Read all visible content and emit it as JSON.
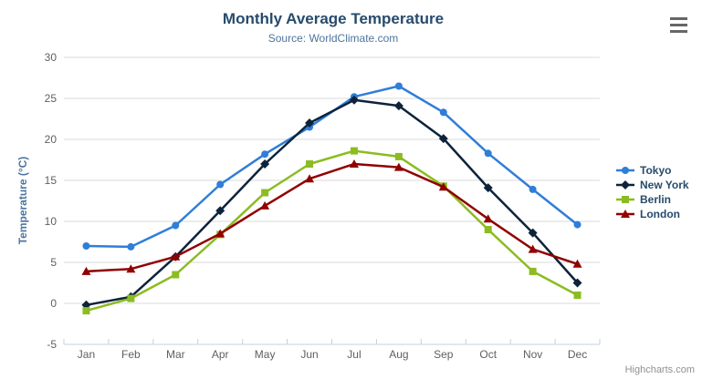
{
  "header": {
    "title": "Monthly Average Temperature",
    "subtitle": "Source: WorldClimate.com"
  },
  "chart_data": {
    "type": "line",
    "title": "Monthly Average Temperature",
    "subtitle": "Source: WorldClimate.com",
    "categories": [
      "Jan",
      "Feb",
      "Mar",
      "Apr",
      "May",
      "Jun",
      "Jul",
      "Aug",
      "Sep",
      "Oct",
      "Nov",
      "Dec"
    ],
    "series": [
      {
        "name": "Tokyo",
        "marker": "circle",
        "color": "#2f7ed8",
        "values": [
          7.0,
          6.9,
          9.5,
          14.5,
          18.2,
          21.5,
          25.2,
          26.5,
          23.3,
          18.3,
          13.9,
          9.6
        ]
      },
      {
        "name": "New York",
        "marker": "diamond",
        "color": "#0d233a",
        "values": [
          -0.2,
          0.8,
          5.7,
          11.3,
          17.0,
          22.0,
          24.8,
          24.1,
          20.1,
          14.1,
          8.6,
          2.5
        ]
      },
      {
        "name": "Berlin",
        "marker": "square",
        "color": "#8bbc21",
        "values": [
          -0.9,
          0.6,
          3.5,
          8.4,
          13.5,
          17.0,
          18.6,
          17.9,
          14.3,
          9.0,
          3.9,
          1.0
        ]
      },
      {
        "name": "London",
        "marker": "triangle",
        "color": "#910000",
        "values": [
          3.9,
          4.2,
          5.7,
          8.5,
          11.9,
          15.2,
          17.0,
          16.6,
          14.2,
          10.3,
          6.6,
          4.8
        ]
      }
    ],
    "xlabel": "",
    "ylabel": "Temperature (°C)",
    "ylim": [
      -5,
      30
    ],
    "ytick_step": 5,
    "yticks": [
      -5,
      0,
      5,
      10,
      15,
      20,
      25,
      30
    ],
    "grid": true,
    "legend_position": "right"
  },
  "credits": {
    "label": "Highcharts.com"
  },
  "icons": {
    "context_menu": "hamburger-menu-icon"
  },
  "colors": {
    "title": "#274b6d",
    "subtitle": "#4d759e",
    "axis_title": "#4d759e",
    "axis_labels": "#606060",
    "gridline": "#d8d8d8",
    "axis_line": "#c0d0e0",
    "legend_text": "#274b6d",
    "credits_text": "#909090",
    "menu_icon": "#666666"
  }
}
